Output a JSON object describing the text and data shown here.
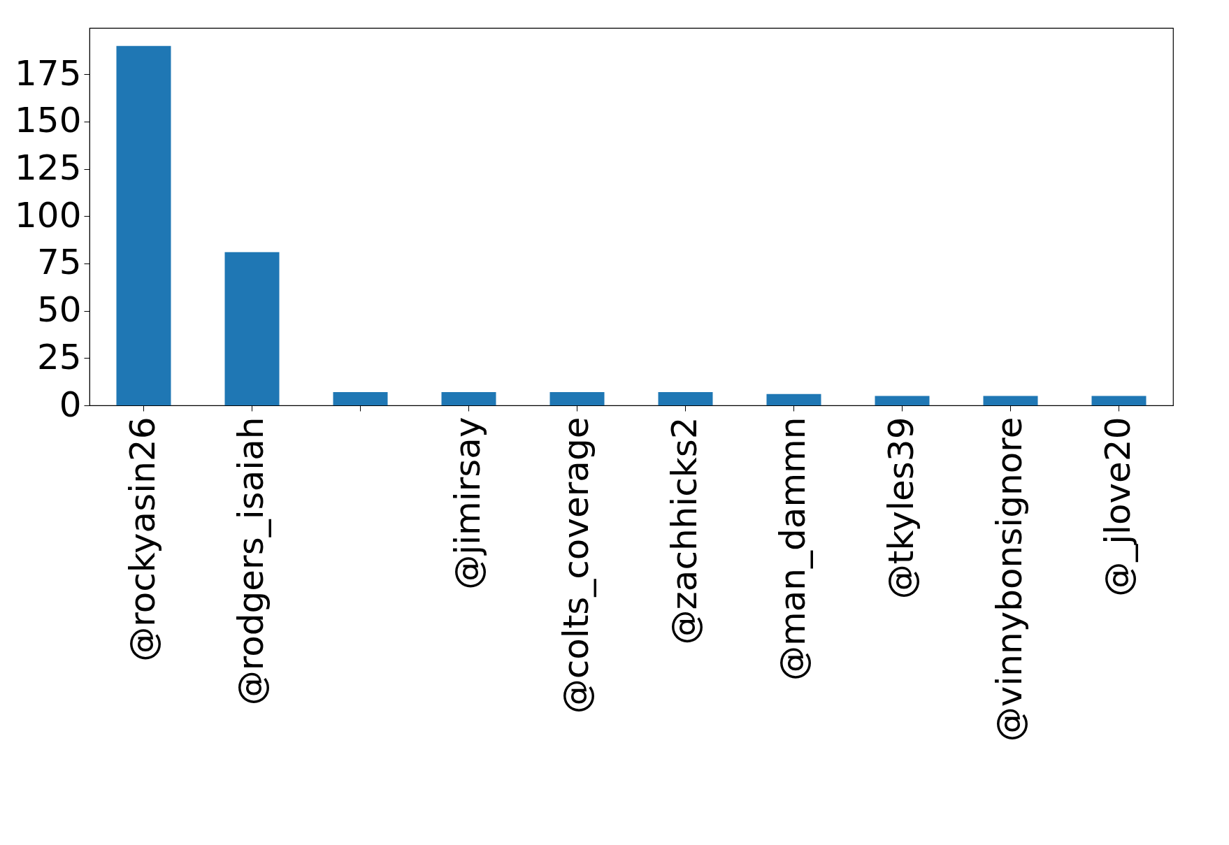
{
  "chart_data": {
    "type": "bar",
    "categories": [
      "@rockyasin26",
      "@rodgers_isaiah",
      null,
      "@jimirsay",
      "@colts_coverage",
      "@zachhicks2",
      "@man_dammn",
      "@tkyles39",
      "@vinnybonsignore",
      "@_jlove20"
    ],
    "values": [
      190,
      81,
      7,
      7,
      7,
      7,
      6,
      5,
      5,
      5
    ],
    "color": "#1f77b4",
    "ylim": [
      0,
      199.5
    ],
    "yticks": [
      0,
      25,
      50,
      75,
      100,
      125,
      150,
      175
    ],
    "grid": false
  }
}
